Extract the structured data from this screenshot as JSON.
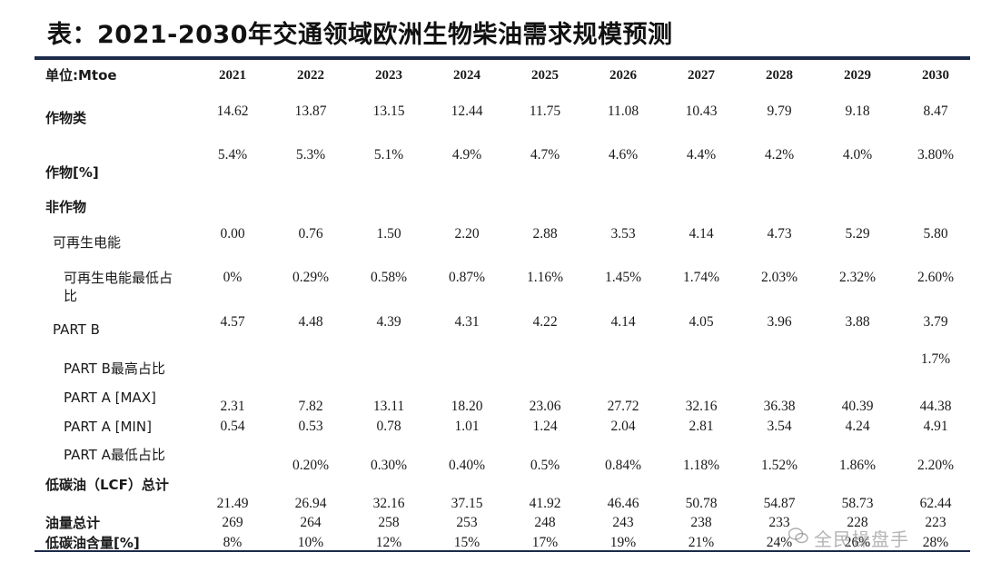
{
  "title": "表：2021-2030年交通领域欧洲生物柴油需求规模预测",
  "header": {
    "unit_label": "单位:Mtoe",
    "years": [
      "2021",
      "2022",
      "2023",
      "2024",
      "2025",
      "2026",
      "2027",
      "2028",
      "2029",
      "2030"
    ]
  },
  "rows": [
    {
      "label": "作物类",
      "values": [
        "14.62",
        "13.87",
        "13.15",
        "12.44",
        "11.75",
        "11.08",
        "10.43",
        "9.79",
        "9.18",
        "8.47"
      ]
    },
    {
      "label": "作物[%]",
      "values": [
        "5.4%",
        "5.3%",
        "5.1%",
        "4.9%",
        "4.7%",
        "4.6%",
        "4.4%",
        "4.2%",
        "4.0%",
        "3.80%"
      ]
    },
    {
      "label": "非作物",
      "values": []
    },
    {
      "label": "可再生电能",
      "values": [
        "0.00",
        "0.76",
        "1.50",
        "2.20",
        "2.88",
        "3.53",
        "4.14",
        "4.73",
        "5.29",
        "5.80"
      ]
    },
    {
      "label": "可再生电能最低占比",
      "values": [
        "0%",
        "0.29%",
        "0.58%",
        "0.87%",
        "1.16%",
        "1.45%",
        "1.74%",
        "2.03%",
        "2.32%",
        "2.60%"
      ]
    },
    {
      "label": "PART B",
      "values": [
        "4.57",
        "4.48",
        "4.39",
        "4.31",
        "4.22",
        "4.14",
        "4.05",
        "3.96",
        "3.88",
        "3.79"
      ]
    },
    {
      "label": "PART B最高占比",
      "values": [
        "",
        "",
        "",
        "",
        "",
        "",
        "",
        "",
        "",
        "1.7%"
      ]
    },
    {
      "label": "PART A [MAX]",
      "values": [
        "2.31",
        "7.82",
        "13.11",
        "18.20",
        "23.06",
        "27.72",
        "32.16",
        "36.38",
        "40.39",
        "44.38"
      ]
    },
    {
      "label": "PART A [MIN]",
      "values": [
        "0.54",
        "0.53",
        "0.78",
        "1.01",
        "1.24",
        "2.04",
        "2.81",
        "3.54",
        "4.24",
        "4.91"
      ]
    },
    {
      "label": "PART A最低占比",
      "values": [
        "",
        "0.20%",
        "0.30%",
        "0.40%",
        "0.5%",
        "0.84%",
        "1.18%",
        "1.52%",
        "1.86%",
        "2.20%"
      ]
    },
    {
      "label": "低碳油（LCF）总计",
      "values": [
        "21.49",
        "26.94",
        "32.16",
        "37.15",
        "41.92",
        "46.46",
        "50.78",
        "54.87",
        "58.73",
        "62.44"
      ]
    },
    {
      "label": "油量总计",
      "values": [
        "269",
        "264",
        "258",
        "253",
        "248",
        "243",
        "238",
        "233",
        "228",
        "223"
      ]
    },
    {
      "label": "低碳油含量[%]",
      "values": [
        "8%",
        "10%",
        "12%",
        "15%",
        "17%",
        "19%",
        "21%",
        "24%",
        "26%",
        "28%"
      ]
    }
  ],
  "watermark": "全民操盘手",
  "watermark_icon": "wechat-icon"
}
